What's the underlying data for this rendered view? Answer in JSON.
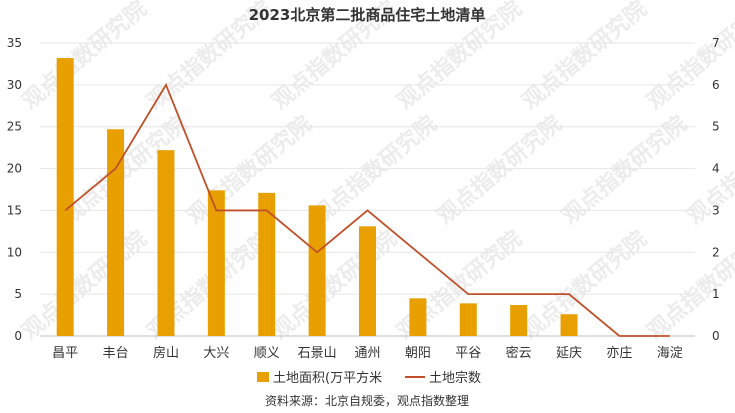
{
  "chart_data": {
    "type": "bar",
    "title": "2023北京第二批商品住宅土地清单",
    "categories": [
      "昌平",
      "丰台",
      "房山",
      "大兴",
      "顺义",
      "石景山",
      "通州",
      "朝阳",
      "平谷",
      "密云",
      "延庆",
      "亦庄",
      "海淀"
    ],
    "series": [
      {
        "name": "土地面积(万平方米",
        "type": "bar",
        "axis": "left",
        "values": [
          33.2,
          24.7,
          22.2,
          17.4,
          17.1,
          15.6,
          13.1,
          4.5,
          3.9,
          3.7,
          2.6,
          0,
          0
        ],
        "color": "#E8A000"
      },
      {
        "name": "土地宗数",
        "type": "line",
        "axis": "right",
        "values": [
          3,
          4,
          6,
          3,
          3,
          2,
          3,
          2,
          1,
          1,
          1,
          0,
          0
        ],
        "color": "#C0502A"
      }
    ],
    "y_left": {
      "min": 0,
      "max": 35,
      "ticks": [
        0,
        5,
        10,
        15,
        20,
        25,
        30,
        35
      ]
    },
    "y_right": {
      "min": 0,
      "max": 7,
      "ticks": [
        0,
        1,
        2,
        3,
        4,
        5,
        6,
        7
      ]
    },
    "grid": true,
    "legend_position": "bottom-center",
    "source": "资料来源：北京自规委，观点指数整理",
    "watermark": "观点指数研究院"
  }
}
